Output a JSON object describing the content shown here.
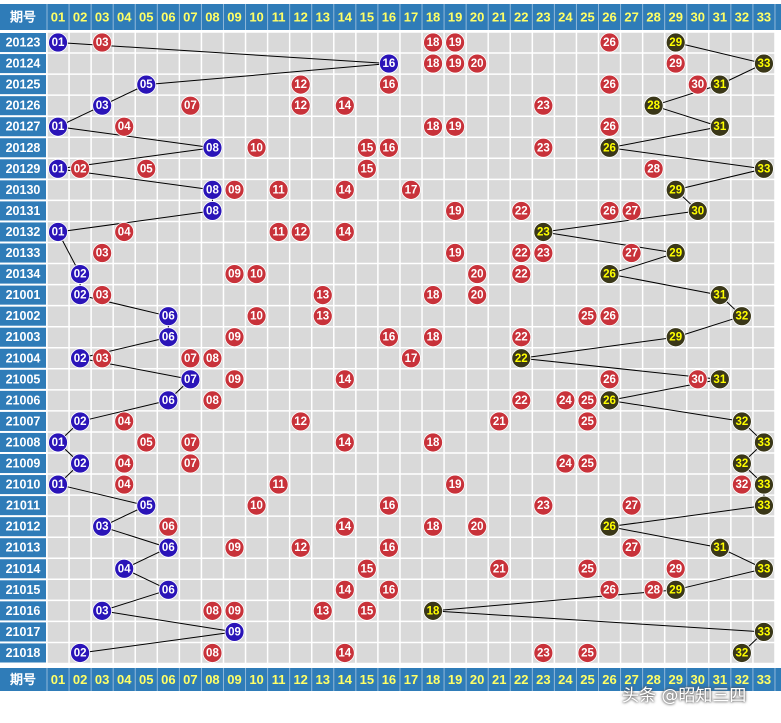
{
  "header_label": "期号",
  "footer_label": "期号",
  "watermark": "头条 @昭知三四",
  "columns": [
    "01",
    "02",
    "03",
    "04",
    "05",
    "06",
    "07",
    "08",
    "09",
    "10",
    "11",
    "12",
    "13",
    "14",
    "15",
    "16",
    "17",
    "18",
    "19",
    "20",
    "21",
    "22",
    "23",
    "24",
    "25",
    "26",
    "27",
    "28",
    "29",
    "30",
    "31",
    "32",
    "33"
  ],
  "colors": {
    "header_bg": "#2f7cb8",
    "period_bg": "#2f7cb8",
    "grid_bg": "#d9d9d9",
    "red_ball": "#c8323a",
    "blue_ball": "#2a14b8",
    "dark_ball": "#3a3718",
    "line": "#000000"
  },
  "chart_data": {
    "type": "table",
    "title": "",
    "description_fields": [
      "period",
      "red",
      "blue",
      "dark"
    ],
    "rows": [
      {
        "period": "20123",
        "red": [
          3,
          18,
          19,
          26
        ],
        "blue": [
          1
        ],
        "dark": [
          29
        ]
      },
      {
        "period": "20124",
        "red": [
          18,
          19,
          20,
          29
        ],
        "blue": [
          16
        ],
        "dark": [
          33
        ]
      },
      {
        "period": "20125",
        "red": [
          12,
          16,
          26,
          30
        ],
        "blue": [
          5
        ],
        "dark": [
          31
        ]
      },
      {
        "period": "20126",
        "red": [
          7,
          12,
          14,
          23
        ],
        "blue": [
          3
        ],
        "dark": [
          28
        ]
      },
      {
        "period": "20127",
        "red": [
          4,
          18,
          19,
          26
        ],
        "blue": [
          1
        ],
        "dark": [
          31
        ]
      },
      {
        "period": "20128",
        "red": [
          10,
          15,
          16,
          23
        ],
        "blue": [
          8
        ],
        "dark": [
          26
        ]
      },
      {
        "period": "20129",
        "red": [
          2,
          5,
          15,
          28
        ],
        "blue": [
          1
        ],
        "dark": [
          33
        ]
      },
      {
        "period": "20130",
        "red": [
          9,
          11,
          14,
          17
        ],
        "blue": [
          8
        ],
        "dark": [
          29
        ]
      },
      {
        "period": "20131",
        "red": [
          19,
          22,
          26,
          27
        ],
        "blue": [
          8
        ],
        "dark": [
          30
        ]
      },
      {
        "period": "20132",
        "red": [
          4,
          11,
          12,
          14
        ],
        "blue": [
          1
        ],
        "dark": [
          23
        ]
      },
      {
        "period": "20133",
        "red": [
          3,
          19,
          22,
          23,
          27
        ],
        "blue": [],
        "dark": [
          29
        ]
      },
      {
        "period": "20134",
        "red": [
          9,
          10,
          20,
          22
        ],
        "blue": [
          2
        ],
        "dark": [
          26
        ]
      },
      {
        "period": "21001",
        "red": [
          3,
          13,
          18,
          20
        ],
        "blue": [
          2
        ],
        "dark": [
          31
        ]
      },
      {
        "period": "21002",
        "red": [
          10,
          13,
          25,
          26
        ],
        "blue": [
          6
        ],
        "dark": [
          32
        ]
      },
      {
        "period": "21003",
        "red": [
          9,
          16,
          18,
          22
        ],
        "blue": [
          6
        ],
        "dark": [
          29
        ]
      },
      {
        "period": "21004",
        "red": [
          3,
          7,
          8,
          17
        ],
        "blue": [
          2
        ],
        "dark": [
          22
        ]
      },
      {
        "period": "21005",
        "red": [
          9,
          14,
          26,
          30
        ],
        "blue": [
          7
        ],
        "dark": [
          31
        ]
      },
      {
        "period": "21006",
        "red": [
          8,
          22,
          24,
          25
        ],
        "blue": [
          6
        ],
        "dark": [
          26
        ]
      },
      {
        "period": "21007",
        "red": [
          4,
          12,
          21,
          25
        ],
        "blue": [
          2
        ],
        "dark": [
          32
        ]
      },
      {
        "period": "21008",
        "red": [
          5,
          7,
          14,
          18
        ],
        "blue": [
          1
        ],
        "dark": [
          33
        ]
      },
      {
        "period": "21009",
        "red": [
          4,
          7,
          24,
          25
        ],
        "blue": [
          2
        ],
        "dark": [
          32
        ]
      },
      {
        "period": "21010",
        "red": [
          4,
          11,
          19,
          32
        ],
        "blue": [
          1
        ],
        "dark": [
          33
        ]
      },
      {
        "period": "21011",
        "red": [
          10,
          16,
          23,
          27
        ],
        "blue": [
          5
        ],
        "dark": [
          33
        ]
      },
      {
        "period": "21012",
        "red": [
          6,
          14,
          18,
          20
        ],
        "blue": [
          3
        ],
        "dark": [
          26
        ]
      },
      {
        "period": "21013",
        "red": [
          9,
          12,
          16,
          27
        ],
        "blue": [
          6
        ],
        "dark": [
          31
        ]
      },
      {
        "period": "21014",
        "red": [
          15,
          21,
          25,
          29
        ],
        "blue": [
          4
        ],
        "dark": [
          33
        ]
      },
      {
        "period": "21015",
        "red": [
          14,
          16,
          26,
          28
        ],
        "blue": [
          6
        ],
        "dark": [
          29
        ]
      },
      {
        "period": "21016",
        "red": [
          8,
          9,
          13,
          15
        ],
        "blue": [
          3
        ],
        "dark": [
          18
        ]
      },
      {
        "period": "21017",
        "red": [],
        "blue": [
          9
        ],
        "dark": [
          33
        ]
      },
      {
        "period": "21018",
        "red": [
          8,
          14,
          23,
          25
        ],
        "blue": [
          2
        ],
        "dark": [
          32
        ]
      }
    ]
  }
}
